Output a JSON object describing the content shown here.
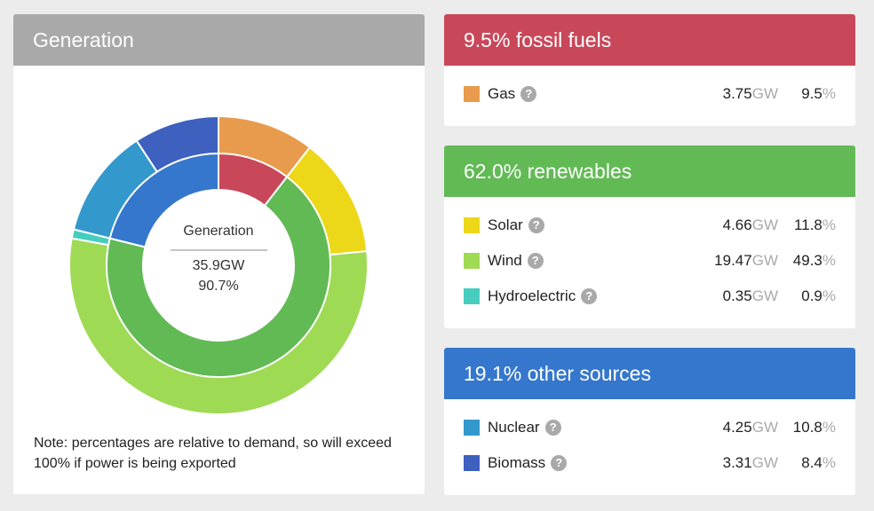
{
  "generation": {
    "title": "Generation",
    "center_label": "Generation",
    "center_gw": "35.9GW",
    "center_pct": "90.7%",
    "note": "Note: percentages are relative to demand, so will exceed 100% if power is being exported"
  },
  "groups": [
    {
      "title": "9.5% fossil fuels",
      "color": "#c8485a",
      "rows": [
        {
          "name": "Gas",
          "color": "#e89b4c",
          "value": "3.75",
          "unit": "GW",
          "pct": "9.5",
          "pct_sign": "%"
        }
      ]
    },
    {
      "title": "62.0% renewables",
      "color": "#62ba55",
      "rows": [
        {
          "name": "Solar",
          "color": "#ecd818",
          "value": "4.66",
          "unit": "GW",
          "pct": "11.8",
          "pct_sign": "%"
        },
        {
          "name": "Wind",
          "color": "#9fda55",
          "value": "19.47",
          "unit": "GW",
          "pct": "49.3",
          "pct_sign": "%"
        },
        {
          "name": "Hydroelectric",
          "color": "#46cdc0",
          "value": "0.35",
          "unit": "GW",
          "pct": "0.9",
          "pct_sign": "%"
        }
      ]
    },
    {
      "title": "19.1% other sources",
      "color": "#3577cc",
      "rows": [
        {
          "name": "Nuclear",
          "color": "#3398cc",
          "value": "4.25",
          "unit": "GW",
          "pct": "10.8",
          "pct_sign": "%"
        },
        {
          "name": "Biomass",
          "color": "#3e60bf",
          "value": "3.31",
          "unit": "GW",
          "pct": "8.4",
          "pct_sign": "%"
        }
      ]
    }
  ],
  "chart_data": {
    "type": "pie",
    "outer": [
      {
        "name": "Gas",
        "value": 3.75,
        "color": "#e89b4c"
      },
      {
        "name": "Solar",
        "value": 4.66,
        "color": "#ecd818"
      },
      {
        "name": "Wind",
        "value": 19.47,
        "color": "#9fda55"
      },
      {
        "name": "Hydroelectric",
        "value": 0.35,
        "color": "#46cdc0"
      },
      {
        "name": "Nuclear",
        "value": 4.25,
        "color": "#3398cc"
      },
      {
        "name": "Biomass",
        "value": 3.31,
        "color": "#3e60bf"
      }
    ],
    "inner": [
      {
        "name": "fossil fuels",
        "value": 3.75,
        "color": "#c8485a"
      },
      {
        "name": "renewables",
        "value": 24.48,
        "color": "#62ba55"
      },
      {
        "name": "other sources",
        "value": 7.56,
        "color": "#3577cc"
      }
    ]
  }
}
